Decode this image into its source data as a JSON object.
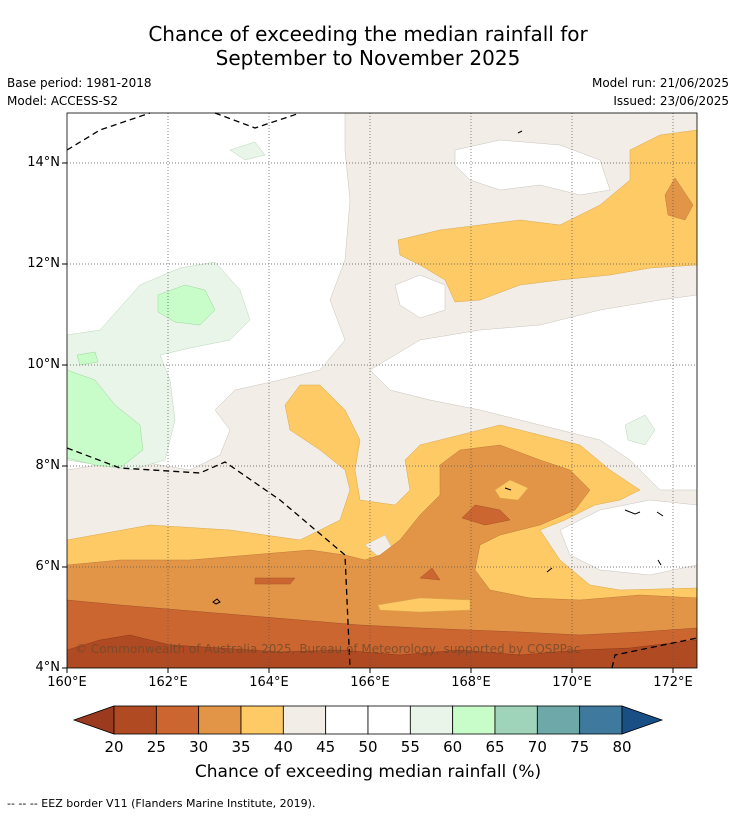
{
  "title": {
    "line1": "Chance of exceeding the median rainfall for",
    "line2": "September to November 2025"
  },
  "meta": {
    "base_period": "Base period: 1981-2018",
    "model": "Model: ACCESS-S2",
    "model_run": "Model run: 21/06/2025",
    "issued": "Issued: 23/06/2025"
  },
  "map": {
    "lon_range": [
      160,
      172.5
    ],
    "lat_range": [
      4,
      15
    ],
    "lon_ticks": [
      "160°E",
      "162°E",
      "164°E",
      "166°E",
      "168°E",
      "170°E",
      "172°E"
    ],
    "lat_ticks": [
      "14°N",
      "12°N",
      "10°N",
      "8°N",
      "6°N",
      "4°N"
    ],
    "copyright": "© Commonwealth of Australia 2025, Bureau of Meteorology, supported by COSPPac"
  },
  "colorbar": {
    "labels": [
      "20",
      "25",
      "30",
      "35",
      "40",
      "45",
      "50",
      "55",
      "60",
      "65",
      "70",
      "75",
      "80"
    ],
    "colors": [
      "#9b3a1f",
      "#b04a22",
      "#cc6630",
      "#e29547",
      "#fdca66",
      "#f2ede7",
      "#ffffff",
      "#ffffff",
      "#e8f5e8",
      "#c8fcc8",
      "#9fd4bb",
      "#6fa8a8",
      "#3f7a9e",
      "#1a4f85"
    ],
    "title": "Chance of exceeding median rainfall (%)"
  },
  "footnote": "--  --  -- EEZ border V11 (Flanders Marine Institute, 2019)."
}
